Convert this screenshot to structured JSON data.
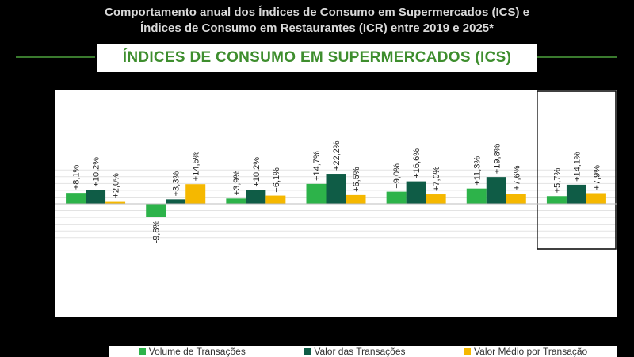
{
  "header": {
    "title_line1": "Comportamento anual dos Índices de Consumo em Supermercados (ICS) e",
    "title_line2_plain": "Índices de Consumo em Restaurantes (ICR) ",
    "title_line2_underlined": "entre 2019 e 2025*",
    "banner": "ÍNDICES DE CONSUMO EM SUPERMERCADOS  (ICS)"
  },
  "colors": {
    "volume": "#2db34a",
    "valor": "#0f5c46",
    "medio": "#f5b800",
    "accent": "#3e8e2e"
  },
  "chart_data": {
    "type": "bar",
    "title": "ÍNDICES DE CONSUMO EM SUPERMERCADOS  (ICS)",
    "xlabel": "",
    "ylabel": "",
    "ylim": [
      -25,
      25
    ],
    "grid": true,
    "legend_position": "bottom",
    "categories": [
      "",
      "",
      "",
      "",
      "",
      "",
      ""
    ],
    "series": [
      {
        "name": "Volume de Transações",
        "values": [
          8.1,
          -9.8,
          3.9,
          14.7,
          9.0,
          11.3,
          5.7
        ],
        "labels": [
          "+8,1%",
          "-9,8%",
          "+3,9%",
          "+14,7%",
          "+9,0%",
          "+11,3%",
          "+5,7%"
        ]
      },
      {
        "name": "Valor das Transações",
        "values": [
          10.2,
          3.3,
          10.2,
          22.2,
          16.6,
          19.8,
          14.1
        ],
        "labels": [
          "+10,2%",
          "+3,3%",
          "+10,2%",
          "+22,2%",
          "+16,6%",
          "+19,8%",
          "+14,1%"
        ]
      },
      {
        "name": "Valor Médio por Transação",
        "values": [
          2.0,
          14.5,
          6.1,
          6.5,
          7.0,
          7.6,
          7.9
        ],
        "labels": [
          "+2,0%",
          "+14,5%",
          "+6,1%",
          "+6,5%",
          "+7,0%",
          "+7,6%",
          "+7,9%"
        ]
      }
    ],
    "highlighted_group_index": 6
  }
}
